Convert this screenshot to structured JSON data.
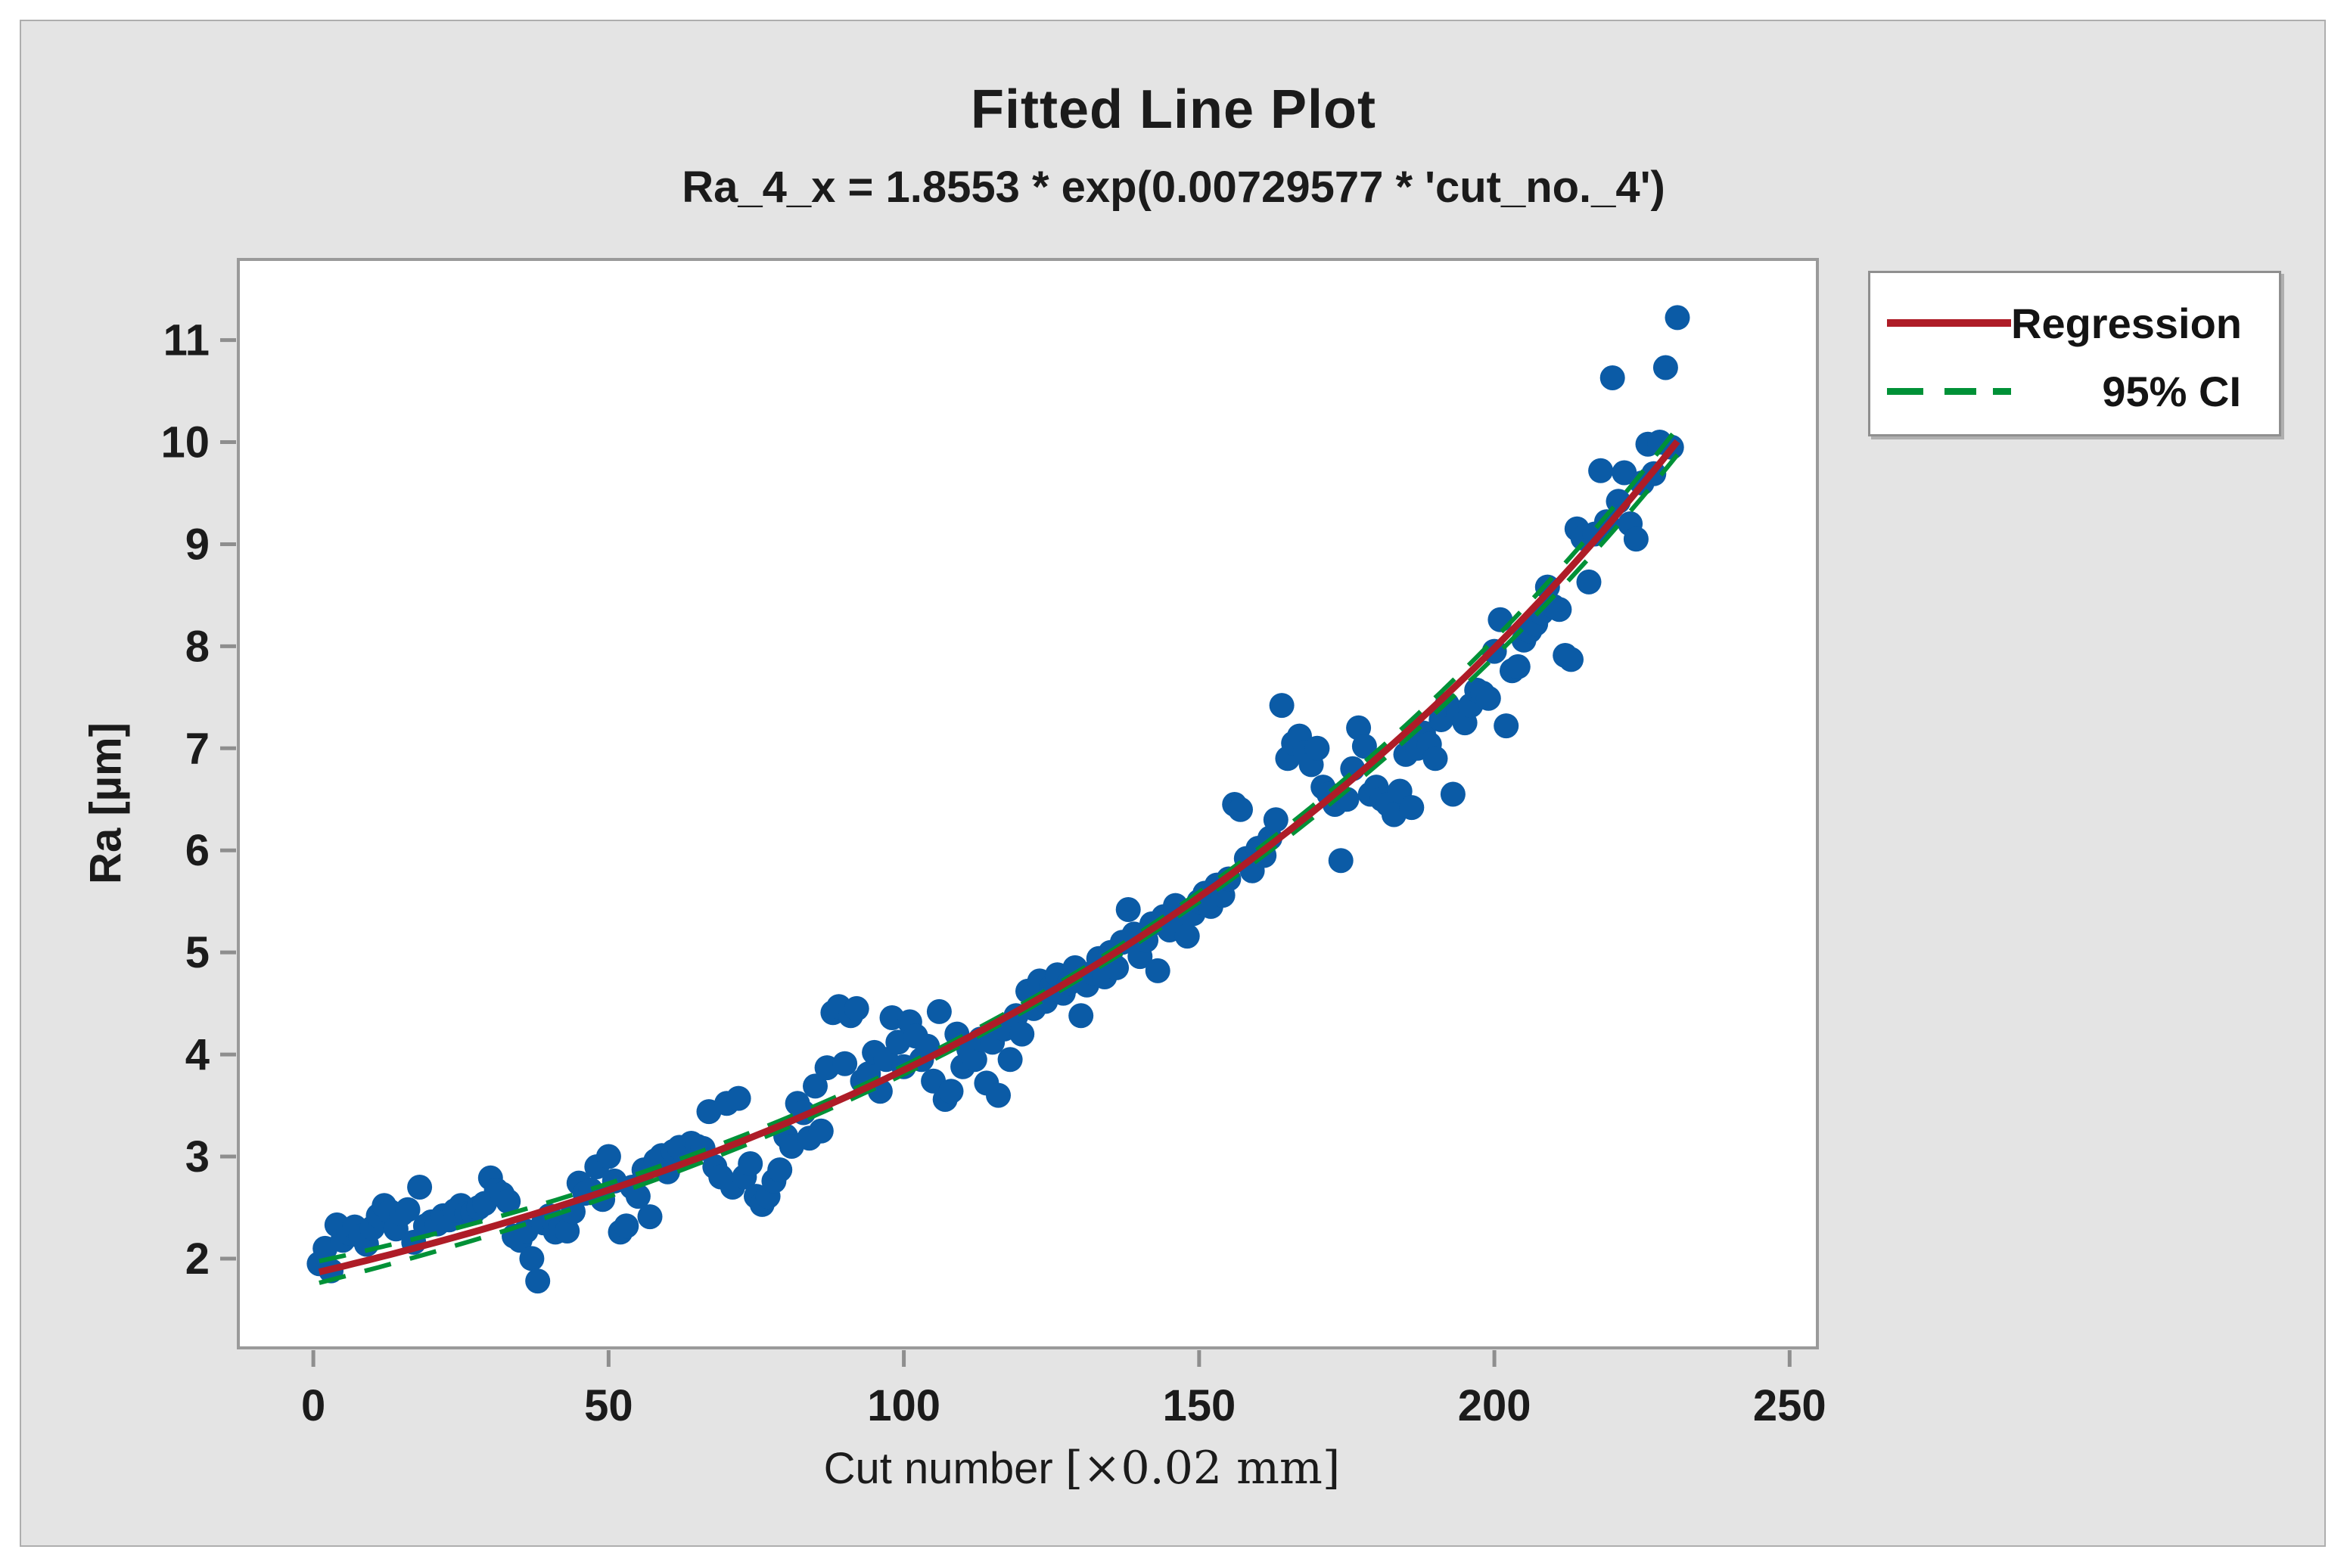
{
  "chart_data": {
    "type": "scatter",
    "title": "Fitted Line Plot",
    "equation": "Ra_4_x = 1.8553 * exp(0.00729577 * 'cut_no._4')",
    "xlabel": "Cut number ",
    "xlabel_unit": "[×0.02 mm]",
    "ylabel": "Ra [µm]",
    "x_ticks": [
      0,
      50,
      100,
      150,
      200,
      250
    ],
    "y_ticks": [
      2,
      3,
      4,
      5,
      6,
      7,
      8,
      9,
      10,
      11
    ],
    "xlim": [
      -12.7,
      254.7
    ],
    "ylim": [
      1.125,
      11.79
    ],
    "grid": false,
    "legend_position": "top-right",
    "point_color": "#0b5ba6",
    "regression_color": "#ae1c27",
    "ci_color": "#009137",
    "regression": {
      "a": 1.8553,
      "b": 0.00729577,
      "x_range": [
        1,
        231
      ]
    },
    "points": [
      [
        1,
        1.95
      ],
      [
        2,
        2.1
      ],
      [
        3,
        1.88
      ],
      [
        4,
        2.33
      ],
      [
        5,
        2.18
      ],
      [
        6,
        2.25
      ],
      [
        7,
        2.31
      ],
      [
        8,
        2.22
      ],
      [
        9,
        2.14
      ],
      [
        10,
        2.3
      ],
      [
        11,
        2.42
      ],
      [
        12,
        2.52
      ],
      [
        13,
        2.46
      ],
      [
        14,
        2.29
      ],
      [
        15,
        2.44
      ],
      [
        16,
        2.48
      ],
      [
        17,
        2.16
      ],
      [
        18,
        2.7
      ],
      [
        19,
        2.32
      ],
      [
        20,
        2.36
      ],
      [
        21,
        2.34
      ],
      [
        22,
        2.42
      ],
      [
        23,
        2.38
      ],
      [
        24,
        2.47
      ],
      [
        25,
        2.52
      ],
      [
        26,
        2.44
      ],
      [
        27,
        2.45
      ],
      [
        28,
        2.5
      ],
      [
        29,
        2.54
      ],
      [
        30,
        2.79
      ],
      [
        31,
        2.67
      ],
      [
        32,
        2.63
      ],
      [
        33,
        2.56
      ],
      [
        34,
        2.22
      ],
      [
        35,
        2.18
      ],
      [
        36,
        2.27
      ],
      [
        37,
        2.0
      ],
      [
        38,
        1.78
      ],
      [
        39,
        2.35
      ],
      [
        40,
        2.42
      ],
      [
        41,
        2.26
      ],
      [
        42,
        2.32
      ],
      [
        43,
        2.27
      ],
      [
        44,
        2.46
      ],
      [
        45,
        2.74
      ],
      [
        46,
        2.64
      ],
      [
        47,
        2.67
      ],
      [
        48,
        2.9
      ],
      [
        49,
        2.58
      ],
      [
        50,
        3.0
      ],
      [
        51,
        2.76
      ],
      [
        52,
        2.26
      ],
      [
        53,
        2.32
      ],
      [
        54,
        2.7
      ],
      [
        55,
        2.61
      ],
      [
        56,
        2.87
      ],
      [
        57,
        2.41
      ],
      [
        58,
        2.96
      ],
      [
        59,
        3.01
      ],
      [
        60,
        2.85
      ],
      [
        61,
        3.05
      ],
      [
        62,
        3.09
      ],
      [
        63,
        3.02
      ],
      [
        64,
        3.13
      ],
      [
        65,
        3.1
      ],
      [
        66,
        3.08
      ],
      [
        67,
        3.44
      ],
      [
        68,
        2.9
      ],
      [
        69,
        2.8
      ],
      [
        70,
        3.52
      ],
      [
        71,
        2.7
      ],
      [
        72,
        3.57
      ],
      [
        73,
        2.8
      ],
      [
        74,
        2.93
      ],
      [
        75,
        2.61
      ],
      [
        76,
        2.53
      ],
      [
        77,
        2.61
      ],
      [
        78,
        2.76
      ],
      [
        79,
        2.87
      ],
      [
        80,
        3.2
      ],
      [
        81,
        3.1
      ],
      [
        82,
        3.52
      ],
      [
        83,
        3.43
      ],
      [
        84,
        3.18
      ],
      [
        85,
        3.69
      ],
      [
        86,
        3.25
      ],
      [
        87,
        3.87
      ],
      [
        88,
        4.41
      ],
      [
        89,
        4.47
      ],
      [
        90,
        3.91
      ],
      [
        91,
        4.38
      ],
      [
        92,
        4.45
      ],
      [
        93,
        3.74
      ],
      [
        94,
        3.81
      ],
      [
        95,
        4.02
      ],
      [
        96,
        3.64
      ],
      [
        97,
        3.95
      ],
      [
        98,
        4.36
      ],
      [
        99,
        4.12
      ],
      [
        100,
        3.88
      ],
      [
        101,
        4.32
      ],
      [
        102,
        4.18
      ],
      [
        103,
        3.95
      ],
      [
        104,
        4.08
      ],
      [
        105,
        3.74
      ],
      [
        106,
        4.42
      ],
      [
        107,
        3.56
      ],
      [
        108,
        3.64
      ],
      [
        109,
        4.2
      ],
      [
        110,
        3.88
      ],
      [
        111,
        4.05
      ],
      [
        112,
        3.95
      ],
      [
        113,
        4.15
      ],
      [
        114,
        3.72
      ],
      [
        115,
        4.12
      ],
      [
        116,
        3.6
      ],
      [
        117,
        4.25
      ],
      [
        118,
        3.95
      ],
      [
        119,
        4.38
      ],
      [
        120,
        4.2
      ],
      [
        121,
        4.62
      ],
      [
        122,
        4.45
      ],
      [
        123,
        4.72
      ],
      [
        124,
        4.52
      ],
      [
        125,
        4.66
      ],
      [
        126,
        4.78
      ],
      [
        127,
        4.6
      ],
      [
        128,
        4.7
      ],
      [
        129,
        4.85
      ],
      [
        130,
        4.38
      ],
      [
        131,
        4.68
      ],
      [
        132,
        4.8
      ],
      [
        133,
        4.94
      ],
      [
        134,
        4.76
      ],
      [
        135,
        5.0
      ],
      [
        136,
        4.85
      ],
      [
        137,
        5.1
      ],
      [
        138,
        5.42
      ],
      [
        139,
        5.18
      ],
      [
        140,
        4.96
      ],
      [
        141,
        5.12
      ],
      [
        142,
        5.28
      ],
      [
        143,
        4.82
      ],
      [
        144,
        5.35
      ],
      [
        145,
        5.22
      ],
      [
        146,
        5.46
      ],
      [
        147,
        5.3
      ],
      [
        148,
        5.16
      ],
      [
        149,
        5.38
      ],
      [
        150,
        5.5
      ],
      [
        151,
        5.58
      ],
      [
        152,
        5.45
      ],
      [
        153,
        5.66
      ],
      [
        154,
        5.56
      ],
      [
        155,
        5.72
      ],
      [
        156,
        6.45
      ],
      [
        157,
        6.4
      ],
      [
        158,
        5.92
      ],
      [
        159,
        5.8
      ],
      [
        160,
        6.02
      ],
      [
        161,
        5.95
      ],
      [
        162,
        6.12
      ],
      [
        163,
        6.3
      ],
      [
        164,
        7.42
      ],
      [
        165,
        6.9
      ],
      [
        166,
        7.05
      ],
      [
        167,
        7.12
      ],
      [
        168,
        6.96
      ],
      [
        169,
        6.84
      ],
      [
        170,
        7.0
      ],
      [
        171,
        6.62
      ],
      [
        172,
        6.55
      ],
      [
        173,
        6.45
      ],
      [
        174,
        5.9
      ],
      [
        175,
        6.5
      ],
      [
        176,
        6.8
      ],
      [
        177,
        7.2
      ],
      [
        178,
        7.02
      ],
      [
        179,
        6.55
      ],
      [
        180,
        6.62
      ],
      [
        181,
        6.5
      ],
      [
        182,
        6.45
      ],
      [
        183,
        6.35
      ],
      [
        184,
        6.58
      ],
      [
        185,
        6.94
      ],
      [
        186,
        6.42
      ],
      [
        187,
        7.0
      ],
      [
        188,
        7.15
      ],
      [
        189,
        7.04
      ],
      [
        190,
        6.9
      ],
      [
        191,
        7.28
      ],
      [
        192,
        7.43
      ],
      [
        193,
        6.55
      ],
      [
        194,
        7.35
      ],
      [
        195,
        7.25
      ],
      [
        196,
        7.42
      ],
      [
        197,
        7.57
      ],
      [
        198,
        7.54
      ],
      [
        199,
        7.49
      ],
      [
        200,
        7.95
      ],
      [
        201,
        8.26
      ],
      [
        202,
        7.22
      ],
      [
        203,
        7.76
      ],
      [
        204,
        7.8
      ],
      [
        205,
        8.06
      ],
      [
        206,
        8.15
      ],
      [
        207,
        8.22
      ],
      [
        208,
        8.33
      ],
      [
        209,
        8.58
      ],
      [
        210,
        8.39
      ],
      [
        211,
        8.36
      ],
      [
        212,
        7.91
      ],
      [
        213,
        7.87
      ],
      [
        214,
        9.15
      ],
      [
        215,
        9.06
      ],
      [
        216,
        8.63
      ],
      [
        217,
        9.1
      ],
      [
        218,
        9.72
      ],
      [
        219,
        9.22
      ],
      [
        220,
        10.63
      ],
      [
        221,
        9.42
      ],
      [
        222,
        9.7
      ],
      [
        223,
        9.2
      ],
      [
        224,
        9.05
      ],
      [
        225,
        9.6
      ],
      [
        226,
        9.98
      ],
      [
        227,
        9.69
      ],
      [
        228,
        10.0
      ],
      [
        229,
        10.73
      ],
      [
        230,
        9.95
      ],
      [
        231,
        11.22
      ]
    ]
  },
  "legend": {
    "entries": [
      {
        "label": "Regression",
        "style": "solid",
        "color": "#ae1c27"
      },
      {
        "label": "95% CI",
        "style": "dashed",
        "color": "#009137"
      }
    ]
  }
}
